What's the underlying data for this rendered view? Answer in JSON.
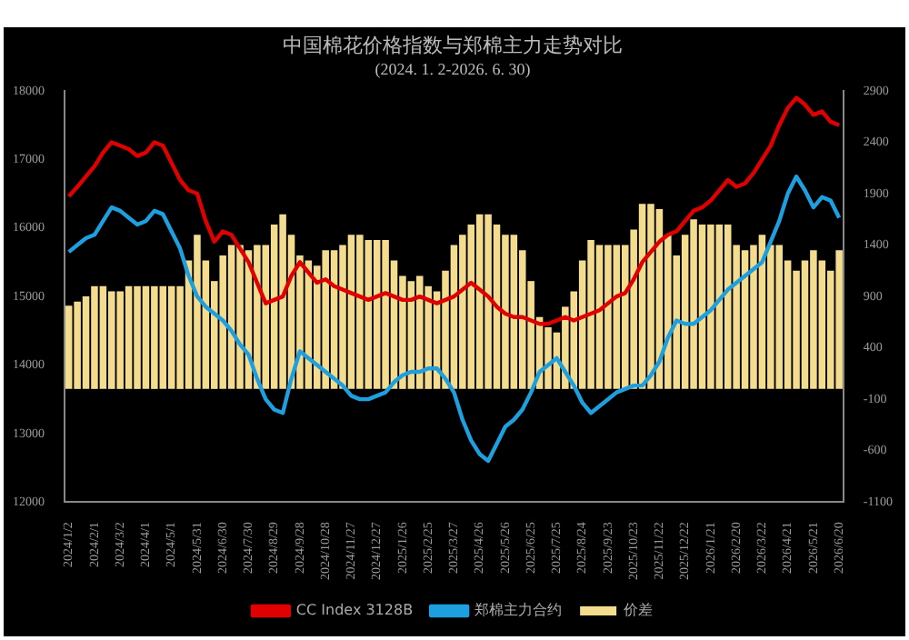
{
  "chart_data": {
    "type": "bar",
    "title": "中国棉花价格指数与郑棉主力走势对比",
    "subtitle": "(2024. 1. 2-2026. 6. 30)",
    "categories": [
      "2024/1/2",
      null,
      null,
      "2024/2/1",
      null,
      null,
      "2024/3/2",
      null,
      null,
      "2024/4/1",
      null,
      null,
      "2024/5/1",
      null,
      null,
      "2024/5/31",
      null,
      null,
      "2024/6/30",
      null,
      null,
      "2024/7/30",
      null,
      null,
      "2024/8/29",
      null,
      null,
      "2024/9/28",
      null,
      null,
      "2024/10/28",
      null,
      null,
      "2024/11/27",
      null,
      null,
      "2024/12/27",
      null,
      null,
      "2025/1/26",
      null,
      null,
      "2025/2/25",
      null,
      null,
      "2025/3/27",
      null,
      null,
      "2025/4/26",
      null,
      null,
      "2025/5/26",
      null,
      null,
      "2025/6/25",
      null,
      null,
      "2025/7/25",
      null,
      null,
      "2025/8/24",
      null,
      null,
      "2025/9/23",
      null,
      null,
      "2025/10/23",
      null,
      null,
      "2025/11/22",
      null,
      null,
      "2025/12/22",
      null,
      null,
      "2026/1/21",
      null,
      null,
      "2026/2/20",
      null,
      null,
      "2026/3/22",
      null,
      null,
      "2026/4/21",
      null,
      null,
      "2026/5/21",
      null,
      null,
      "2026/6/20"
    ],
    "series": [
      {
        "name": "价差",
        "axis": "y2",
        "color": "#f3dc8e",
        "values": [
          810,
          850,
          900,
          1000,
          1000,
          950,
          950,
          1000,
          1000,
          1000,
          1000,
          1000,
          1000,
          1000,
          1250,
          1500,
          1250,
          1050,
          1300,
          1400,
          1400,
          1350,
          1400,
          1400,
          1600,
          1700,
          1500,
          1300,
          1250,
          1200,
          1350,
          1350,
          1400,
          1500,
          1500,
          1450,
          1450,
          1450,
          1250,
          1100,
          1050,
          1100,
          1000,
          950,
          1150,
          1400,
          1500,
          1600,
          1700,
          1700,
          1600,
          1500,
          1500,
          1350,
          1050,
          700,
          600,
          550,
          800,
          950,
          1250,
          1450,
          1400,
          1400,
          1400,
          1400,
          1550,
          1800,
          1800,
          1750,
          1500,
          1300,
          1500,
          1650,
          1600,
          1600,
          1600,
          1600,
          1400,
          1350,
          1400,
          1500,
          1400,
          1400,
          1250,
          1150,
          1250,
          1350,
          1250,
          1150,
          1350
        ]
      },
      {
        "name": "CC Index 3128B",
        "type": "line",
        "color": "#e00000",
        "values": [
          16460,
          16600,
          16750,
          16900,
          17100,
          17250,
          17200,
          17150,
          17050,
          17100,
          17250,
          17200,
          16950,
          16700,
          16550,
          16500,
          16100,
          15800,
          15950,
          15900,
          15700,
          15500,
          15200,
          14900,
          14950,
          15000,
          15300,
          15500,
          15350,
          15200,
          15250,
          15150,
          15100,
          15050,
          15000,
          14950,
          15000,
          15050,
          15000,
          14950,
          14950,
          15000,
          14950,
          14900,
          14950,
          15000,
          15100,
          15200,
          15100,
          15000,
          14850,
          14750,
          14700,
          14700,
          14650,
          14600,
          14600,
          14650,
          14700,
          14650,
          14700,
          14750,
          14800,
          14900,
          15000,
          15050,
          15250,
          15500,
          15650,
          15800,
          15900,
          15950,
          16100,
          16250,
          16300,
          16400,
          16550,
          16700,
          16600,
          16650,
          16800,
          17000,
          17200,
          17500,
          17750,
          17900,
          17800,
          17650,
          17700,
          17550,
          17500
        ]
      },
      {
        "name": "郑棉主力合约",
        "type": "line",
        "color": "#1ea0e0",
        "values": [
          15650,
          15750,
          15850,
          15900,
          16100,
          16300,
          16250,
          16150,
          16050,
          16100,
          16250,
          16200,
          15950,
          15700,
          15300,
          15000,
          14850,
          14750,
          14650,
          14500,
          14300,
          14150,
          13800,
          13500,
          13350,
          13300,
          13800,
          14200,
          14100,
          14000,
          13900,
          13800,
          13700,
          13550,
          13500,
          13500,
          13550,
          13600,
          13750,
          13850,
          13900,
          13900,
          13950,
          13950,
          13800,
          13600,
          13200,
          12900,
          12700,
          12600,
          12850,
          13100,
          13200,
          13350,
          13600,
          13900,
          14000,
          14100,
          13900,
          13700,
          13450,
          13300,
          13400,
          13500,
          13600,
          13650,
          13700,
          13700,
          13850,
          14050,
          14400,
          14650,
          14600,
          14600,
          14700,
          14800,
          14950,
          15100,
          15200,
          15300,
          15400,
          15500,
          15800,
          16100,
          16500,
          16750,
          16550,
          16300,
          16450,
          16400,
          16150
        ]
      }
    ],
    "ylim": [
      12000,
      18000
    ],
    "yticks": [
      12000,
      13000,
      14000,
      15000,
      16000,
      17000,
      18000
    ],
    "y2lim": [
      -1100,
      2900
    ],
    "y2ticks": [
      -1100,
      -600,
      -100,
      400,
      900,
      1400,
      1900,
      2400,
      2900
    ],
    "grid": false,
    "legend": "bottom",
    "marker": "none",
    "line_style": "solid"
  }
}
